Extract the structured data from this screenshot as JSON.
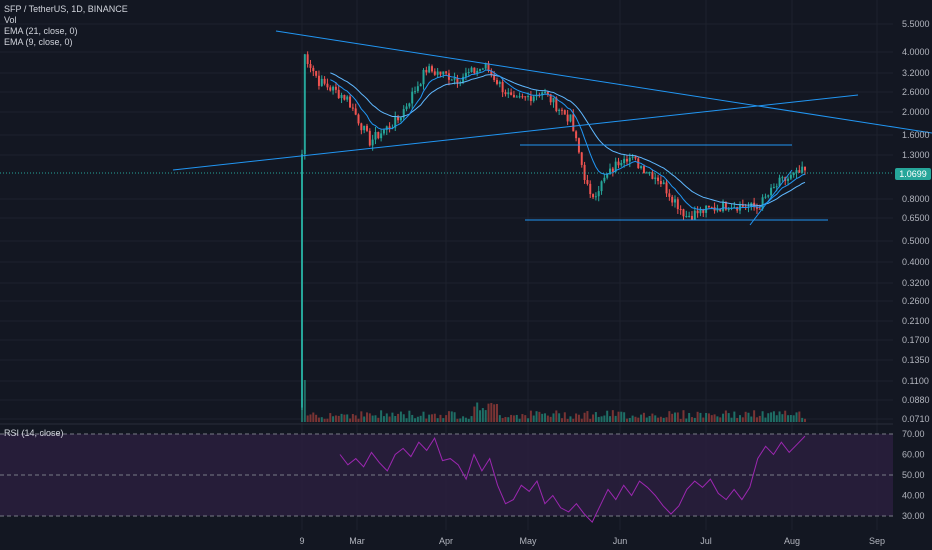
{
  "header": {
    "symbol_line": "SFP / TetherUS, 1D, BINANCE",
    "vol_label": "Vol",
    "ema21_label": "EMA (21, close, 0)",
    "ema9_label": "EMA (9, close, 0)"
  },
  "rsi": {
    "label": "RSI (14, close)",
    "ticks": [
      "70.00",
      "60.00",
      "50.00",
      "40.00",
      "30.00"
    ],
    "levels": [
      70,
      50,
      30
    ]
  },
  "price_badge": "1.0699",
  "chart_data": {
    "type": "candlestick",
    "title": "SFP / TetherUS, 1D, BINANCE",
    "y_scale": "log",
    "y_ticks": [
      "5.5000",
      "4.0000",
      "3.2000",
      "2.6000",
      "2.0000",
      "1.6000",
      "1.3000",
      "0.8000",
      "0.6500",
      "0.5000",
      "0.4000",
      "0.3200",
      "0.2600",
      "0.2100",
      "0.1700",
      "0.1350",
      "0.1100",
      "0.0880",
      "0.0710"
    ],
    "x_ticks": [
      "9",
      "Mar",
      "Apr",
      "May",
      "Jun",
      "Jul",
      "Aug",
      "Sep"
    ],
    "last_price": 1.0699,
    "approx_close_path": [
      {
        "date": "Feb 9",
        "close": 1.3
      },
      {
        "date": "Feb 10",
        "close": 3.9
      },
      {
        "date": "Feb 15",
        "close": 2.9
      },
      {
        "date": "Feb 25",
        "close": 2.4
      },
      {
        "date": "Mar 5",
        "close": 1.5
      },
      {
        "date": "Mar 15",
        "close": 1.9
      },
      {
        "date": "Mar 25",
        "close": 3.3
      },
      {
        "date": "Apr 5",
        "close": 3.0
      },
      {
        "date": "Apr 15",
        "close": 3.4
      },
      {
        "date": "Apr 25",
        "close": 2.3
      },
      {
        "date": "May 5",
        "close": 2.6
      },
      {
        "date": "May 15",
        "close": 1.9
      },
      {
        "date": "May 22",
        "close": 0.8
      },
      {
        "date": "Jun 3",
        "close": 1.3
      },
      {
        "date": "Jun 15",
        "close": 1.0
      },
      {
        "date": "Jun 25",
        "close": 0.66
      },
      {
        "date": "Jul 10",
        "close": 0.75
      },
      {
        "date": "Jul 20",
        "close": 0.72
      },
      {
        "date": "Jul 28",
        "close": 0.95
      },
      {
        "date": "Aug 5",
        "close": 1.07
      }
    ],
    "rsi_path": [
      60,
      55,
      58,
      54,
      61,
      56,
      52,
      60,
      63,
      59,
      66,
      62,
      68,
      57,
      58,
      55,
      48,
      60,
      52,
      58,
      45,
      36,
      38,
      45,
      42,
      47,
      36,
      40,
      34,
      32,
      36,
      31,
      27,
      35,
      43,
      38,
      45,
      40,
      47,
      44,
      40,
      35,
      31,
      35,
      43,
      47,
      44,
      48,
      41,
      38,
      43,
      38,
      44,
      58,
      64,
      60,
      66,
      61,
      65,
      69
    ],
    "volume_profile": "spike at listing day, then low"
  },
  "colors": {
    "background": "#131722",
    "up": "#26a69a",
    "down": "#ef5350",
    "trendline": "#2196f3",
    "rsi_line": "#9c27b0",
    "rsi_band": "#2a1f3d"
  }
}
